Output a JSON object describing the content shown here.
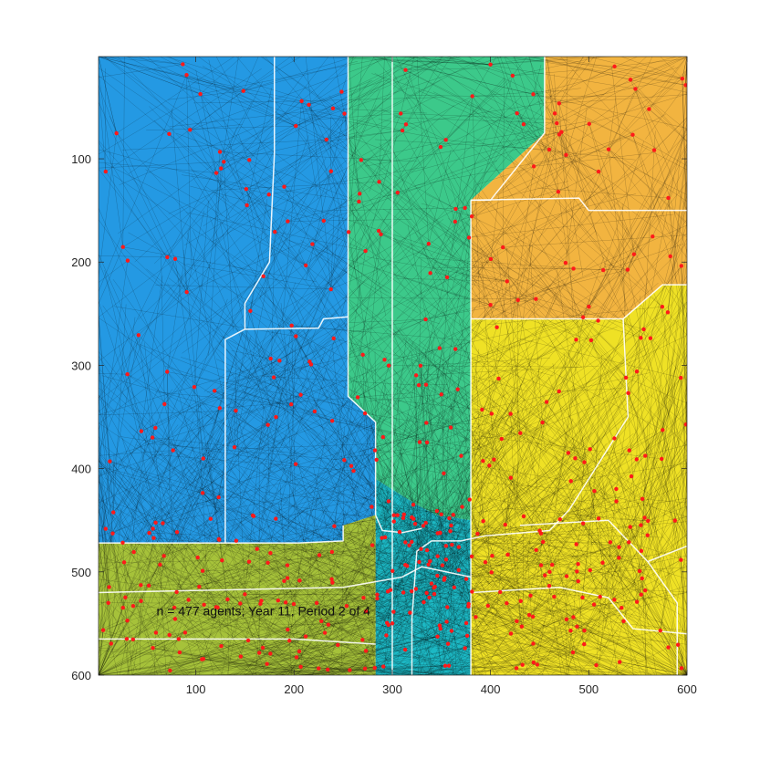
{
  "chart_data": {
    "type": "scatter",
    "title": "",
    "xlabel": "",
    "ylabel": "",
    "xlim": [
      1,
      600
    ],
    "ylim": [
      1,
      600
    ],
    "y_reversed": true,
    "grid": false,
    "xticks": [
      100,
      200,
      300,
      400,
      500,
      600
    ],
    "yticks": [
      100,
      200,
      300,
      400,
      500,
      600
    ],
    "xtick_labels": [
      "100",
      "200",
      "300",
      "400",
      "500",
      "600"
    ],
    "ytick_labels": [
      "100",
      "200",
      "300",
      "400",
      "500",
      "600"
    ],
    "annotation": {
      "text": "n = 477 agents; Year 11, Period 2 of 4",
      "x": 60,
      "y": 542
    },
    "colors": {
      "blue": "#2499E3",
      "teal_green": "#3CC98A",
      "orange": "#F2B440",
      "yellow": "#EFE125",
      "olive": "#A6C23A",
      "cyan": "#1CB8C4",
      "dots": "#FF1A1A",
      "boundary": "#FFFFFF",
      "path": "#000000"
    },
    "regions": [
      {
        "name": "blue",
        "color": "#2499E3",
        "polygon": [
          [
            1,
            1
          ],
          [
            255,
            1
          ],
          [
            255,
            330
          ],
          [
            283,
            355
          ],
          [
            283,
            445
          ],
          [
            250,
            455
          ],
          [
            250,
            470
          ],
          [
            205,
            472
          ],
          [
            1,
            472
          ]
        ]
      },
      {
        "name": "teal_green",
        "color": "#3CC98A",
        "polygon": [
          [
            255,
            1
          ],
          [
            455,
            1
          ],
          [
            455,
            75
          ],
          [
            380,
            140
          ],
          [
            380,
            450
          ],
          [
            345,
            445
          ],
          [
            325,
            435
          ],
          [
            283,
            410
          ],
          [
            283,
            355
          ],
          [
            255,
            330
          ]
        ]
      },
      {
        "name": "orange",
        "color": "#F2B440",
        "polygon": [
          [
            455,
            1
          ],
          [
            600,
            1
          ],
          [
            600,
            222
          ],
          [
            575,
            222
          ],
          [
            535,
            255
          ],
          [
            380,
            255
          ],
          [
            380,
            140
          ],
          [
            455,
            75
          ]
        ]
      },
      {
        "name": "yellow",
        "color": "#EFE125",
        "polygon": [
          [
            380,
            255
          ],
          [
            535,
            255
          ],
          [
            575,
            222
          ],
          [
            600,
            222
          ],
          [
            600,
            600
          ],
          [
            380,
            600
          ]
        ]
      },
      {
        "name": "cyan",
        "color": "#1CB8C4",
        "polygon": [
          [
            283,
            410
          ],
          [
            325,
            435
          ],
          [
            345,
            445
          ],
          [
            380,
            450
          ],
          [
            380,
            600
          ],
          [
            283,
            600
          ]
        ]
      },
      {
        "name": "olive",
        "color": "#A6C23A",
        "polygon": [
          [
            1,
            472
          ],
          [
            205,
            472
          ],
          [
            250,
            470
          ],
          [
            250,
            455
          ],
          [
            283,
            445
          ],
          [
            283,
            600
          ],
          [
            1,
            600
          ]
        ]
      }
    ],
    "boundaries": [
      [
        [
          180,
          1
        ],
        [
          180,
          95
        ],
        [
          175,
          200
        ],
        [
          150,
          240
        ],
        [
          150,
          265
        ],
        [
          130,
          275
        ],
        [
          130,
          472
        ]
      ],
      [
        [
          150,
          265
        ],
        [
          225,
          264
        ],
        [
          230,
          255
        ],
        [
          255,
          253
        ]
      ],
      [
        [
          300,
          1
        ],
        [
          300,
          600
        ]
      ],
      [
        [
          255,
          1
        ],
        [
          255,
          330
        ],
        [
          283,
          355
        ],
        [
          283,
          445
        ]
      ],
      [
        [
          380,
          140
        ],
        [
          380,
          600
        ]
      ],
      [
        [
          455,
          1
        ],
        [
          455,
          75
        ],
        [
          400,
          140
        ],
        [
          380,
          140
        ]
      ],
      [
        [
          380,
          140
        ],
        [
          490,
          138
        ],
        [
          500,
          150
        ],
        [
          600,
          150
        ]
      ],
      [
        [
          380,
          255
        ],
        [
          535,
          255
        ],
        [
          575,
          222
        ],
        [
          600,
          222
        ]
      ],
      [
        [
          535,
          255
        ],
        [
          540,
          350
        ],
        [
          480,
          440
        ],
        [
          460,
          460
        ],
        [
          395,
          465
        ],
        [
          370,
          470
        ],
        [
          340,
          470
        ],
        [
          325,
          480
        ],
        [
          320,
          545
        ],
        [
          320,
          600
        ]
      ],
      [
        [
          250,
          455
        ],
        [
          250,
          470
        ],
        [
          205,
          472
        ],
        [
          1,
          472
        ]
      ],
      [
        [
          1,
          520
        ],
        [
          250,
          515
        ],
        [
          310,
          505
        ],
        [
          330,
          495
        ],
        [
          380,
          505
        ]
      ],
      [
        [
          380,
          520
        ],
        [
          470,
          515
        ],
        [
          520,
          525
        ],
        [
          545,
          555
        ],
        [
          600,
          560
        ]
      ],
      [
        [
          1,
          565
        ],
        [
          200,
          565
        ],
        [
          283,
          570
        ]
      ],
      [
        [
          283,
          445
        ],
        [
          290,
          460
        ],
        [
          310,
          462
        ],
        [
          330,
          458
        ]
      ],
      [
        [
          430,
          455
        ],
        [
          520,
          450
        ],
        [
          560,
          490
        ],
        [
          600,
          475
        ]
      ],
      [
        [
          560,
          490
        ],
        [
          590,
          530
        ],
        [
          590,
          600
        ]
      ]
    ],
    "series": [
      {
        "name": "agents",
        "count": 477,
        "color": "#FF1A1A"
      }
    ]
  }
}
